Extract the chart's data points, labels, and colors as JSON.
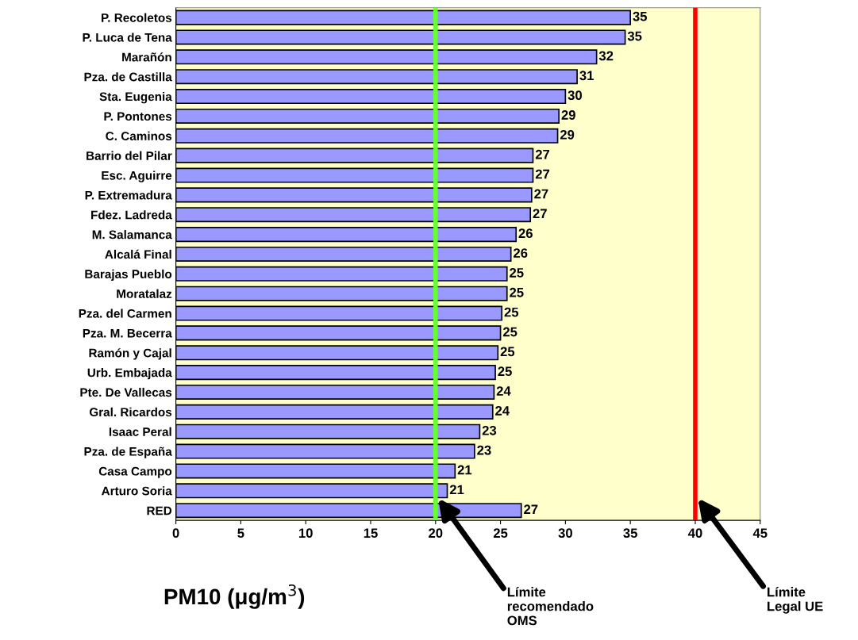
{
  "chart_data": {
    "type": "bar",
    "orientation": "horizontal",
    "categories": [
      "P. Recoletos",
      "P. Luca de Tena",
      "Marañón",
      "Pza. de Castilla",
      "Sta. Eugenia",
      "P. Pontones",
      "C. Caminos",
      "Barrio del Pilar",
      "Esc. Aguirre",
      "P. Extremadura",
      "Fdez. Ladreda",
      "M. Salamanca",
      "Alcalá Final",
      "Barajas Pueblo",
      "Moratalaz",
      "Pza. del Carmen",
      "Pza. M. Becerra",
      "Ramón y Cajal",
      "Urb. Embajada",
      "Pte. De Vallecas",
      "Gral. Ricardos",
      "Isaac Peral",
      "Pza. de España",
      "Casa Campo",
      "Arturo Soria",
      "RED"
    ],
    "values": [
      35.0,
      34.6,
      32.4,
      30.9,
      30.0,
      29.5,
      29.4,
      27.5,
      27.5,
      27.4,
      27.3,
      26.2,
      25.8,
      25.5,
      25.5,
      25.1,
      25.0,
      24.8,
      24.6,
      24.5,
      24.4,
      23.4,
      23.0,
      21.5,
      20.9,
      26.6
    ],
    "value_labels": [
      "35",
      "35",
      "32",
      "31",
      "30",
      "29",
      "29",
      "27",
      "27",
      "27",
      "27",
      "26",
      "26",
      "25",
      "25",
      "25",
      "25",
      "25",
      "25",
      "24",
      "24",
      "23",
      "23",
      "21",
      "21",
      "27"
    ],
    "color": "#9999ff",
    "xlabel": "PM10 (μg/m$^{3}$)",
    "xlim": [
      0,
      45
    ],
    "xticks": [
      0,
      5,
      10,
      15,
      20,
      25,
      30,
      35,
      40,
      45
    ],
    "grid": false,
    "ref_lines": [
      {
        "axis": "x",
        "value": 20,
        "color": "#66ff33",
        "label": "Límite\nrecomendado\nOMS"
      },
      {
        "axis": "x",
        "value": 40,
        "color": "#ff0000",
        "label": "Límite\nLegal UE"
      }
    ]
  }
}
